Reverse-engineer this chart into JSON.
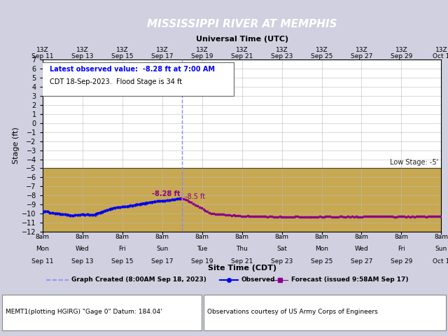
{
  "title": "MISSISSIPPI RIVER AT MEMPHIS",
  "title_bg": "#00008B",
  "title_color": "#FFFFFF",
  "subtitle": "Universal Time (UTC)",
  "xlabel": "Site Time (CDT)",
  "ylabel": "Stage (ft)",
  "bg_color": "#D0D0E0",
  "plot_bg_above": "#FFFFFF",
  "plot_bg_below": "#C8A850",
  "low_stage": -5,
  "ylim_min": -12,
  "ylim_max": 7,
  "yticks": [
    -12,
    -11,
    -10,
    -9,
    -8,
    -7,
    -6,
    -5,
    -4,
    -3,
    -2,
    -1,
    0,
    1,
    2,
    3,
    4,
    5,
    6,
    7
  ],
  "obs_color": "#0000EE",
  "forecast_color": "#880088",
  "graph_created_line_color": "#7777FF",
  "obs_label": "Observed",
  "forecast_label": "Forecast (issued 9:58AM Sep 17)",
  "graph_created_label": "Graph Created (8:00AM Sep 18, 2023)",
  "annotation_box_text1": "Latest observed value:  -8.28 ft at 7:00 AM",
  "annotation_box_text2": "CDT 18-Sep-2023.  Flood Stage is 34 ft",
  "annotation_color1": "#0000FF",
  "annotation_color2": "#000000",
  "low_stage_label": "Low Stage: -5'",
  "obs_annotation": "-8.28 ft",
  "forecast_annotation": "-8.5 ft",
  "footer_left": "MEMT1(plotting HGIRG) \"Gage 0\" Datum: 184.04'",
  "footer_right": "Observations courtesy of US Army Corps of Engineers",
  "tick_positions": [
    0,
    2,
    4,
    6,
    8,
    10,
    12,
    14,
    16,
    18,
    20
  ],
  "utc_line1": [
    "13Z",
    "13Z",
    "13Z",
    "13Z",
    "13Z",
    "13Z",
    "13Z",
    "13Z",
    "13Z",
    "13Z",
    "13Z"
  ],
  "utc_line2": [
    "Sep 11",
    "Sep 13",
    "Sep 15",
    "Sep 17",
    "Sep 19",
    "Sep 21",
    "Sep 23",
    "Sep 25",
    "Sep 27",
    "Sep 29",
    "Oct 1"
  ],
  "site_line1": [
    "8am",
    "8am",
    "8am",
    "8am",
    "8am",
    "8am",
    "8am",
    "8am",
    "8am",
    "8am",
    "8am"
  ],
  "site_line2": [
    "Mon",
    "Wed",
    "Fri",
    "Sun",
    "Tue",
    "Thu",
    "Sat",
    "Mon",
    "Wed",
    "Fri",
    "Sun"
  ],
  "site_line3": [
    "Sep 11",
    "Sep 13",
    "Sep 15",
    "Sep 17",
    "Sep 19",
    "Sep 21",
    "Sep 23",
    "Sep 25",
    "Sep 27",
    "Sep 29",
    "Oct 1"
  ]
}
